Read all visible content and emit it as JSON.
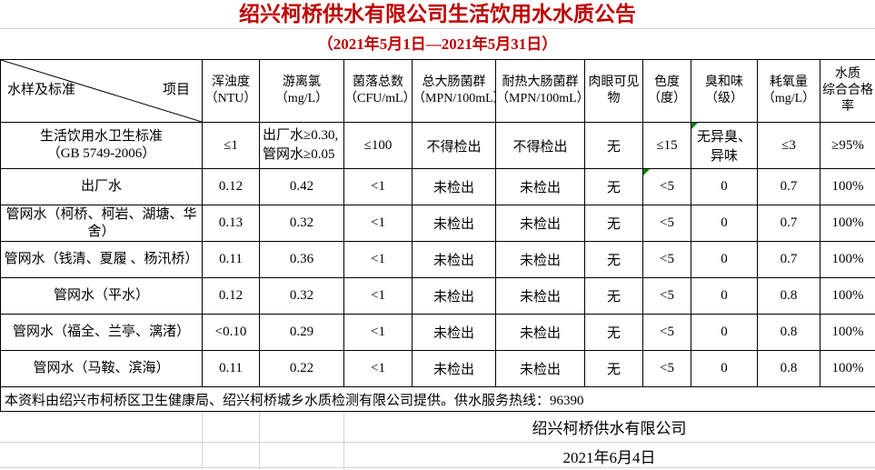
{
  "title": "绍兴柯桥供水有限公司生活饮用水水质公告",
  "subtitle": "（2021年5月1日—2021年5月31日）",
  "corner": {
    "top_right": "项目",
    "bottom_left": "水样及标准"
  },
  "columns": [
    "浑浊度\n（NTU）",
    "游离氯\n（mg/L）",
    "菌落总数\n（CFU/mL）",
    "总大肠菌群\n（MPN/100mL）",
    "耐热大肠菌群\n（MPN/100mL）",
    "肉眼可见物",
    "色度\n（度）",
    "臭和味\n（级）",
    "耗氧量\n（mg/L）",
    "水质\n综合合格率"
  ],
  "standards": {
    "label": "生活饮用水卫生标准\n（GB 5749-2006）",
    "values": [
      "≤1",
      "出厂水≥0.30,\n管网水≥0.05",
      "≤100",
      "不得检出",
      "不得检出",
      "无",
      "≤15",
      "无异臭、\n异味",
      "≤3",
      "≥95%"
    ]
  },
  "rows": [
    {
      "label": "出厂水",
      "values": [
        "0.12",
        "0.42",
        "<1",
        "未检出",
        "未检出",
        "无",
        "<5",
        "0",
        "0.7",
        "100%"
      ]
    },
    {
      "label": "管网水（柯桥、柯岩、湖塘、华舍）",
      "values": [
        "0.13",
        "0.32",
        "<1",
        "未检出",
        "未检出",
        "无",
        "<5",
        "0",
        "0.7",
        "100%"
      ]
    },
    {
      "label": "管网水（钱清、夏履 、杨汛桥）",
      "values": [
        "0.11",
        "0.36",
        "<1",
        "未检出",
        "未检出",
        "无",
        "<5",
        "0",
        "0.7",
        "100%"
      ]
    },
    {
      "label": "管网水（平水）",
      "values": [
        "0.12",
        "0.32",
        "<1",
        "未检出",
        "未检出",
        "无",
        "<5",
        "0",
        "0.8",
        "100%"
      ]
    },
    {
      "label": "管网水（福全、兰亭、漓渚）",
      "values": [
        "<0.10",
        "0.29",
        "<1",
        "未检出",
        "未检出",
        "无",
        "<5",
        "0",
        "0.8",
        "100%"
      ]
    },
    {
      "label": "管网水（马鞍、滨海）",
      "values": [
        "0.11",
        "0.22",
        "<1",
        "未检出",
        "未检出",
        "无",
        "<5",
        "0",
        "0.8",
        "100%"
      ]
    }
  ],
  "note": "本资料由绍兴市柯桥区卫生健康局、绍兴柯桥城乡水质检测有限公司提供。供水服务热线：96390",
  "footer": {
    "company": "绍兴柯桥供水有限公司",
    "date": "2021年6月4日"
  },
  "green_triangles": [
    {
      "row": "standards",
      "col": 7
    },
    {
      "row": 0,
      "col": 6
    }
  ],
  "colors": {
    "title_red": "#c00000",
    "border_black": "#000000",
    "gridline_light": "#ccd3e0",
    "triangle_green": "#008000"
  }
}
